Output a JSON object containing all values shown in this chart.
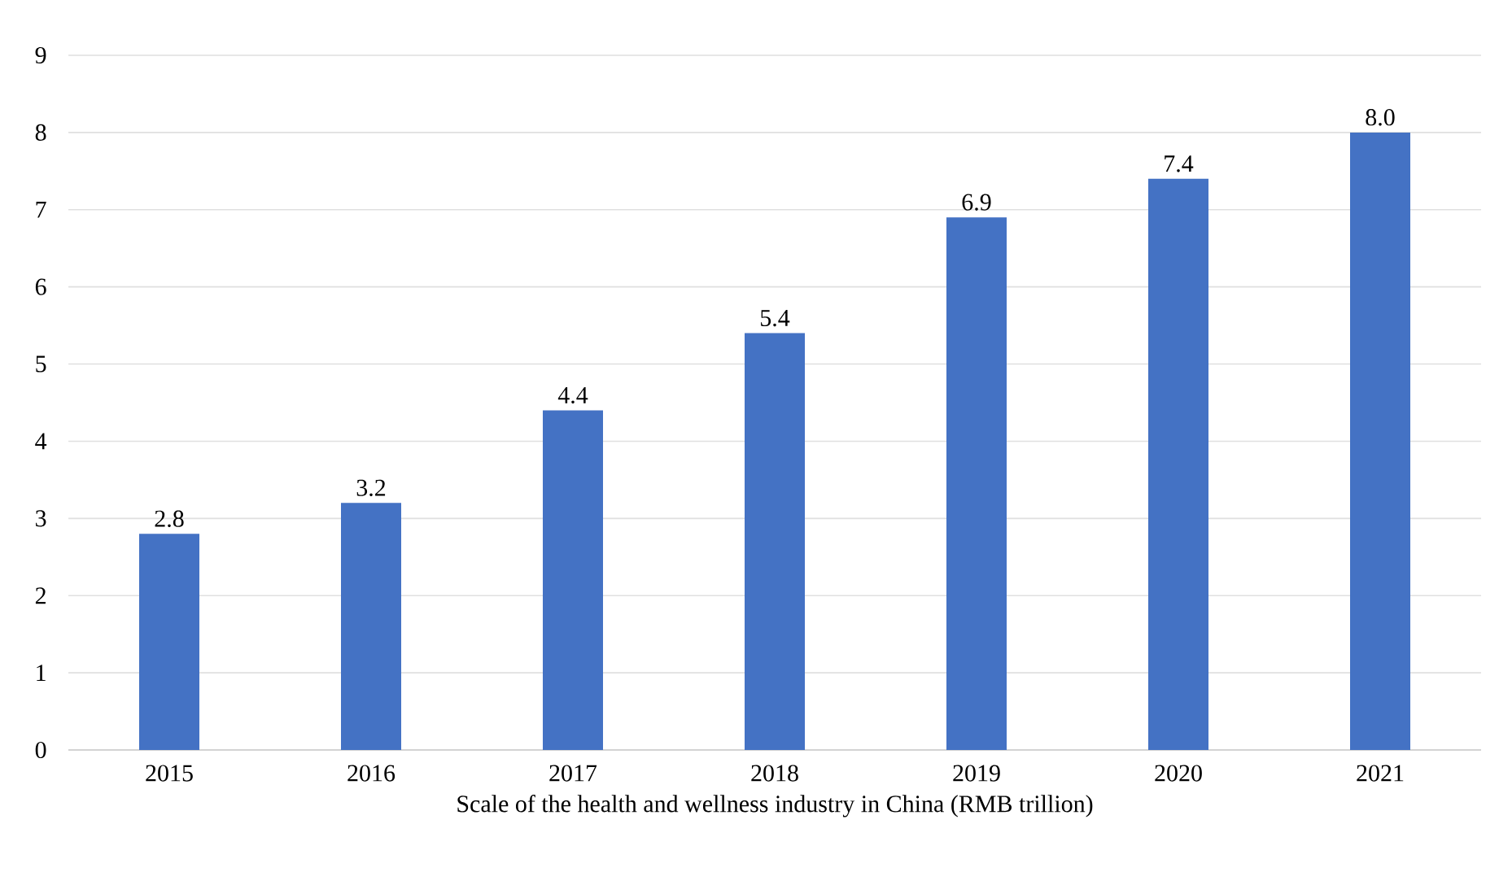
{
  "chart_data": {
    "type": "bar",
    "xlabel": "Scale of the health and wellness industry in China (RMB trillion)",
    "categories": [
      "2015",
      "2016",
      "2017",
      "2018",
      "2019",
      "2020",
      "2021"
    ],
    "values": [
      2.8,
      3.2,
      4.4,
      5.4,
      6.9,
      7.4,
      8.0
    ],
    "color": "#4472c4",
    "ylim": [
      0,
      9
    ],
    "yticks": [
      0,
      1,
      2,
      3,
      4,
      5,
      6,
      7,
      8,
      9
    ],
    "grid": "y",
    "value_labels": [
      "2.8",
      "3.2",
      "4.4",
      "5.4",
      "6.9",
      "7.4",
      "8.0"
    ]
  }
}
